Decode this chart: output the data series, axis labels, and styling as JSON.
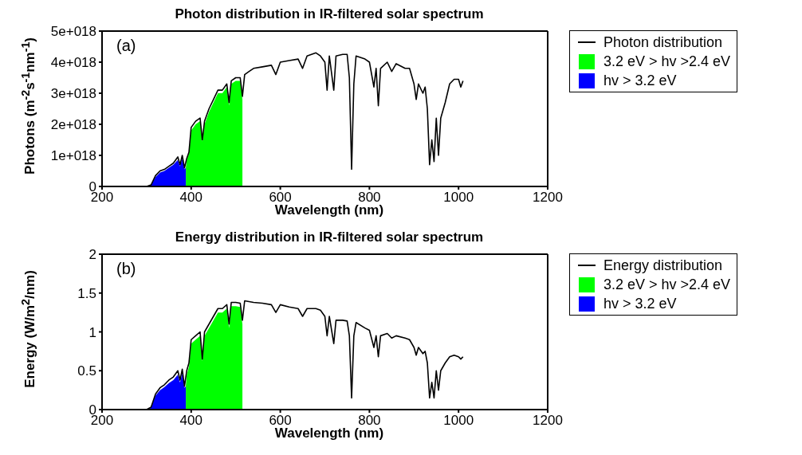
{
  "chart_data": [
    {
      "type": "line",
      "title": "Photon distribution in IR-filtered solar spectrum",
      "xlabel": "Wavelength (nm)",
      "ylabel": "Photons (m$^{-2}$s$^{-1}$nm$^{-1}$)",
      "annotations": [
        "(a)"
      ],
      "legend": "right",
      "grid": false,
      "xlim": [
        200,
        1200
      ],
      "xticks": [
        200,
        400,
        600,
        800,
        1000,
        1200
      ],
      "ylim": [
        0,
        5e+18
      ],
      "yticks": [
        0,
        {
          "value": 1e+18,
          "label": "1e+018"
        },
        {
          "value": 2e+18,
          "label": "2e+018"
        },
        {
          "value": 3e+18,
          "label": "3e+018"
        },
        {
          "value": 4e+18,
          "label": "4e+018"
        },
        {
          "value": 5e+18,
          "label": "5e+018"
        }
      ],
      "series": [
        {
          "name": "Photon distribution",
          "color": "#000000",
          "x": [
            300,
            310,
            320,
            330,
            340,
            350,
            360,
            370,
            375,
            380,
            385,
            390,
            395,
            400,
            410,
            420,
            425,
            430,
            440,
            450,
            460,
            470,
            480,
            485,
            490,
            500,
            510,
            515,
            520,
            530,
            540,
            560,
            580,
            590,
            600,
            620,
            640,
            650,
            660,
            680,
            690,
            700,
            705,
            710,
            720,
            725,
            740,
            750,
            755,
            760,
            765,
            770,
            790,
            800,
            810,
            815,
            820,
            825,
            840,
            850,
            860,
            880,
            890,
            900,
            905,
            910,
            920,
            925,
            930,
            935,
            940,
            945,
            950,
            955,
            960,
            970,
            980,
            990,
            1000,
            1005,
            1010
          ],
          "values": [
            0,
            5e+16,
            3.5e+17,
            5e+17,
            5.5e+17,
            6.5e+17,
            7.5e+17,
            9.5e+17,
            7e+17,
            1e+18,
            6e+17,
            9e+17,
            1.1e+18,
            1.9e+18,
            2.1e+18,
            2.2e+18,
            1.5e+18,
            2.1e+18,
            2.5e+18,
            2.8e+18,
            3.1e+18,
            3.1e+18,
            3.3e+18,
            2.7e+18,
            3.4e+18,
            3.5e+18,
            3.5e+18,
            2.9e+18,
            3.6e+18,
            3.7e+18,
            3.8e+18,
            3.85e+18,
            3.9e+18,
            3.6e+18,
            4e+18,
            4.05e+18,
            4.1e+18,
            3.8e+18,
            4.2e+18,
            4.3e+18,
            4.2e+18,
            4e+18,
            3.1e+18,
            4.2e+18,
            3.1e+18,
            4.2e+18,
            4.25e+18,
            4.25e+18,
            3.5e+18,
            5.5e+17,
            3.3e+18,
            4.2e+18,
            4.1e+18,
            4e+18,
            3.2e+18,
            3.8e+18,
            2.6e+18,
            3.8e+18,
            4e+18,
            3.7e+18,
            3.95e+18,
            3.8e+18,
            3.8e+18,
            3.3e+18,
            2.8e+18,
            3.3e+18,
            3e+18,
            3.2e+18,
            2.5e+18,
            7e+17,
            1.5e+18,
            8e+17,
            2.2e+18,
            1e+18,
            2.2e+18,
            2.7e+18,
            3.3e+18,
            3.45e+18,
            3.45e+18,
            3.2e+18,
            3.4e+18
          ]
        },
        {
          "name": "3.2 eV > hv >2.4 eV",
          "type": "area",
          "color": "#00ff00",
          "x": [
            388,
            390,
            395,
            400,
            410,
            420,
            425,
            430,
            440,
            450,
            460,
            470,
            480,
            485,
            490,
            500,
            510,
            515
          ],
          "values": [
            6e+17,
            8.5e+17,
            1.05e+18,
            1.8e+18,
            2e+18,
            2.1e+18,
            1.45e+18,
            2e+18,
            2.4e+18,
            2.7e+18,
            3e+18,
            3e+18,
            3.2e+18,
            2.6e+18,
            3.3e+18,
            3.4e+18,
            3.4e+18,
            2.8e+18
          ]
        },
        {
          "name": "hv > 3.2 eV",
          "type": "area",
          "color": "#0000ff",
          "x": [
            305,
            310,
            320,
            330,
            340,
            350,
            360,
            370,
            375,
            380,
            385,
            388
          ],
          "values": [
            0,
            5e+16,
            3e+17,
            4.5e+17,
            5e+17,
            6e+17,
            7e+17,
            8.5e+17,
            6.5e+17,
            9e+17,
            5.5e+17,
            6e+17
          ]
        }
      ]
    },
    {
      "type": "line",
      "title": "Energy distribution in IR-filtered solar spectrum",
      "xlabel": "Wavelength (nm)",
      "ylabel": "Energy (W/m$^{2}$/nm)",
      "annotations": [
        "(b)"
      ],
      "legend": "right",
      "grid": false,
      "xlim": [
        200,
        1200
      ],
      "xticks": [
        200,
        400,
        600,
        800,
        1000,
        1200
      ],
      "ylim": [
        0,
        2
      ],
      "yticks": [
        0,
        0.5,
        1,
        1.5,
        2
      ],
      "series": [
        {
          "name": "Energy distribution",
          "color": "#000000",
          "x": [
            300,
            310,
            320,
            330,
            340,
            350,
            360,
            370,
            375,
            380,
            385,
            390,
            395,
            400,
            410,
            420,
            425,
            430,
            440,
            450,
            460,
            470,
            480,
            485,
            490,
            500,
            510,
            515,
            520,
            540,
            560,
            580,
            590,
            600,
            620,
            640,
            650,
            660,
            680,
            690,
            700,
            705,
            710,
            720,
            725,
            740,
            750,
            755,
            760,
            765,
            770,
            790,
            800,
            810,
            815,
            820,
            825,
            840,
            850,
            860,
            880,
            890,
            900,
            905,
            910,
            920,
            925,
            930,
            935,
            940,
            945,
            950,
            955,
            960,
            970,
            980,
            990,
            1000,
            1005,
            1010
          ],
          "values": [
            0,
            0.03,
            0.2,
            0.28,
            0.32,
            0.38,
            0.42,
            0.5,
            0.38,
            0.52,
            0.3,
            0.5,
            0.6,
            0.9,
            0.95,
            1.0,
            0.65,
            1.0,
            1.1,
            1.2,
            1.3,
            1.3,
            1.35,
            1.1,
            1.38,
            1.38,
            1.37,
            1.15,
            1.4,
            1.38,
            1.37,
            1.35,
            1.25,
            1.35,
            1.32,
            1.3,
            1.2,
            1.3,
            1.3,
            1.28,
            1.2,
            0.95,
            1.2,
            0.85,
            1.15,
            1.15,
            1.14,
            0.95,
            0.15,
            0.95,
            1.12,
            1.05,
            1.02,
            0.8,
            0.95,
            0.68,
            0.95,
            0.98,
            0.92,
            0.95,
            0.92,
            0.9,
            0.8,
            0.7,
            0.8,
            0.72,
            0.75,
            0.6,
            0.15,
            0.35,
            0.15,
            0.5,
            0.25,
            0.5,
            0.6,
            0.68,
            0.7,
            0.68,
            0.65,
            0.68
          ]
        },
        {
          "name": "3.2 eV > hv >2.4 eV",
          "type": "area",
          "color": "#00ff00",
          "x": [
            388,
            390,
            395,
            400,
            410,
            420,
            425,
            430,
            440,
            450,
            460,
            470,
            480,
            485,
            490,
            500,
            510,
            515
          ],
          "values": [
            0.3,
            0.45,
            0.55,
            0.85,
            0.9,
            0.95,
            0.62,
            0.95,
            1.05,
            1.15,
            1.25,
            1.25,
            1.3,
            1.05,
            1.33,
            1.33,
            1.32,
            1.1
          ]
        },
        {
          "name": "hv > 3.2 eV",
          "type": "area",
          "color": "#0000ff",
          "x": [
            305,
            310,
            320,
            330,
            340,
            350,
            360,
            370,
            375,
            380,
            385,
            388
          ],
          "values": [
            0,
            0.03,
            0.18,
            0.25,
            0.29,
            0.34,
            0.38,
            0.45,
            0.35,
            0.47,
            0.28,
            0.3
          ]
        }
      ]
    }
  ]
}
